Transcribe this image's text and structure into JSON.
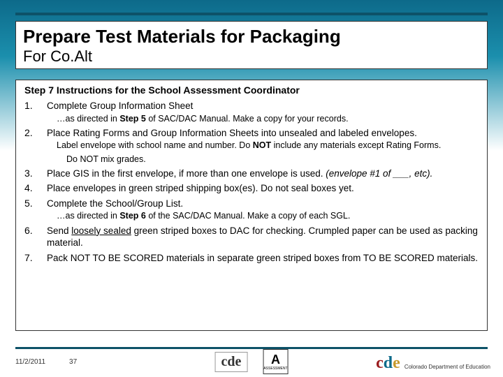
{
  "title": "Prepare Test Materials for Packaging",
  "subtitle": "For Co.Alt",
  "step_header": "Step 7 Instructions for the School Assessment Coordinator",
  "items": {
    "1": {
      "main": "Complete Group Information Sheet",
      "sub": "…as directed in <b>Step 5</b> of SAC/DAC Manual. Make a copy for your records."
    },
    "2": {
      "main": "Place Rating Forms and Group Information Sheets into unsealed and labeled envelopes.",
      "sub": "Label envelope with school name and number.  Do <b>NOT</b> include any materials except Rating Forms.",
      "sub2": "Do NOT mix grades."
    },
    "3": {
      "main": "Place GIS in the first envelope, if more than one envelope is used. <i>(envelope #1 of ___, etc).</i>"
    },
    "4": {
      "main": "Place envelopes in green striped shipping box(es). Do not seal boxes yet."
    },
    "5": {
      "main": "Complete the School/Group List.",
      "sub": "…as directed in <b>Step 6</b> of the SAC/DAC Manual.  Make a copy of each SGL."
    },
    "6": {
      "main": "Send <u>loosely sealed</u> green striped boxes to DAC for checking. Crumpled paper can be used as packing material."
    },
    "7": {
      "main": "Pack NOT TO BE SCORED materials in separate green striped boxes from TO BE SCORED materials."
    }
  },
  "footer": {
    "date": "11/2/2011",
    "page": "37",
    "agency": "Colorado Department of Education",
    "assessment": "ASSESSMENT"
  },
  "colors": {
    "bg_dark": "#0d6a8a",
    "line": "#0d5268"
  }
}
